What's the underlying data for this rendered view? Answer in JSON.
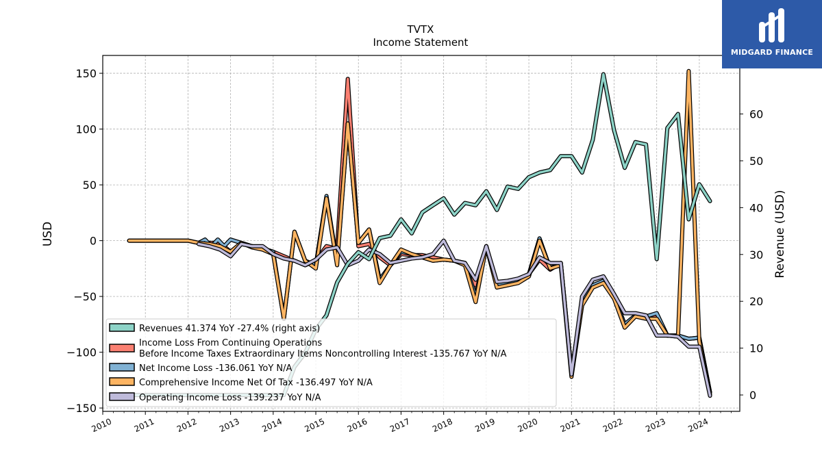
{
  "chart_data": {
    "type": "line",
    "title": "TVTX",
    "subtitle": "Income Statement",
    "ylabel": "USD",
    "y2label": "Revenue (USD)",
    "x_ticks": [
      "2010",
      "2011",
      "2012",
      "2013",
      "2014",
      "2015",
      "2016",
      "2017",
      "2018",
      "2019",
      "2020",
      "2021",
      "2022",
      "2023",
      "2024"
    ],
    "y_ticks": [
      150,
      100,
      50,
      0,
      -50,
      -100,
      -150
    ],
    "y_tick_labels": [
      "150",
      "100",
      "50",
      "0",
      "−50",
      "−100",
      "−150"
    ],
    "y2_ticks": [
      60,
      50,
      40,
      30,
      20,
      10,
      0
    ],
    "ylim": [
      -153,
      166
    ],
    "y2lim": [
      -3.5,
      72.5
    ],
    "xlim": [
      2010.0,
      2024.95
    ],
    "grid": true,
    "legend_position": "lower-left",
    "series": [
      {
        "name": "Revenues  41.374 YoY -27.4% (right axis)",
        "axis": "right",
        "color": "#8dd3c7",
        "x": [
          2010.62,
          2011.0,
          2011.5,
          2012.0,
          2012.5,
          2013.0,
          2013.5,
          2014.0,
          2014.12,
          2014.25,
          2014.5,
          2014.75,
          2015.0,
          2015.25,
          2015.5,
          2015.75,
          2016.0,
          2016.25,
          2016.5,
          2016.75,
          2017.0,
          2017.25,
          2017.5,
          2017.75,
          2018.0,
          2018.25,
          2018.5,
          2018.75,
          2019.0,
          2019.25,
          2019.5,
          2019.75,
          2020.0,
          2020.25,
          2020.5,
          2020.75,
          2021.0,
          2021.25,
          2021.5,
          2021.75,
          2022.0,
          2022.25,
          2022.5,
          2022.75,
          2023.0,
          2023.25,
          2023.5,
          2023.75,
          2024.0,
          2024.25
        ],
        "y": [
          0.0,
          0.0,
          0.0,
          0.0,
          0.0,
          0.0,
          0.0,
          0.0,
          0.0,
          0.0,
          6.0,
          9.0,
          14.0,
          17.0,
          24.0,
          28.0,
          30.5,
          29.0,
          33.5,
          34.0,
          37.5,
          34.5,
          39.0,
          40.5,
          42.0,
          38.5,
          41.0,
          40.5,
          43.5,
          39.5,
          44.5,
          44.0,
          46.5,
          47.5,
          48.0,
          51.0,
          51.0,
          47.5,
          54.5,
          68.5,
          56.5,
          48.5,
          54.0,
          53.5,
          29.0,
          57.0,
          60.0,
          37.5,
          45.0,
          41.4
        ]
      },
      {
        "name": "Income Loss From Continuing Operations\nBefore Income Taxes Extraordinary Items Noncontrolling Interest  -135.767 YoY N/A",
        "axis": "left",
        "color": "#fb8072",
        "x": [
          2010.62,
          2011.0,
          2011.5,
          2012.0,
          2012.25,
          2012.5,
          2012.75,
          2013.0,
          2013.25,
          2013.5,
          2013.75,
          2014.0,
          2014.25,
          2014.5,
          2014.75,
          2015.0,
          2015.25,
          2015.5,
          2015.75,
          2016.0,
          2016.25,
          2016.5,
          2016.75,
          2017.0,
          2017.25,
          2017.5,
          2017.75,
          2018.0,
          2018.25,
          2018.5,
          2018.75,
          2019.0,
          2019.25,
          2019.5,
          2019.75,
          2020.0,
          2020.25,
          2020.5,
          2020.75,
          2021.0,
          2021.25,
          2021.5,
          2021.75,
          2022.0,
          2022.25,
          2022.5,
          2022.75,
          2023.0,
          2023.25,
          2023.5,
          2023.75,
          2024.0,
          2024.25
        ],
        "y": [
          0,
          0,
          0,
          0,
          -2,
          -2,
          -2,
          -10,
          -2,
          -5,
          -7,
          -10,
          -14,
          -18,
          -22,
          -18,
          -5,
          -7,
          145,
          -5,
          -3,
          -15,
          -22,
          -12,
          -13,
          -13,
          -15,
          -17,
          -18,
          -20,
          -40,
          -5,
          -40,
          -38,
          -36,
          -30,
          -17,
          -26,
          -20,
          -118,
          -55,
          -40,
          -36,
          -50,
          -75,
          -67,
          -68,
          -68,
          -85,
          -85,
          -88,
          -87,
          -136
        ]
      },
      {
        "name": "Net Income Loss  -136.061 YoY N/A",
        "axis": "left",
        "color": "#80b1d3",
        "x": [
          2010.62,
          2011.0,
          2011.5,
          2012.0,
          2012.25,
          2012.4,
          2012.55,
          2012.7,
          2012.85,
          2013.0,
          2013.25,
          2013.5,
          2013.75,
          2014.0,
          2014.25,
          2014.5,
          2014.75,
          2015.0,
          2015.25,
          2015.5,
          2015.75,
          2016.0,
          2016.25,
          2016.5,
          2016.75,
          2017.0,
          2017.25,
          2017.5,
          2017.75,
          2018.0,
          2018.25,
          2018.5,
          2018.75,
          2019.0,
          2019.25,
          2019.5,
          2019.75,
          2020.0,
          2020.25,
          2020.5,
          2020.75,
          2021.0,
          2021.25,
          2021.5,
          2021.75,
          2022.0,
          2022.25,
          2022.5,
          2022.75,
          2023.0,
          2023.25,
          2023.5,
          2023.75,
          2024.0,
          2024.25
        ],
        "y": [
          0,
          0,
          0,
          0,
          -2,
          1,
          -5,
          1,
          -5,
          1,
          -2,
          -5,
          -7,
          -10,
          -70,
          8,
          -18,
          -22,
          40,
          -20,
          105,
          -2,
          10,
          -35,
          -22,
          -10,
          -12,
          -15,
          -18,
          -17,
          -18,
          -20,
          -50,
          -5,
          -40,
          -38,
          -36,
          -30,
          2,
          -25,
          -20,
          -118,
          -55,
          -40,
          -36,
          -50,
          -75,
          -67,
          -68,
          -65,
          -85,
          -85,
          -88,
          -87,
          -136
        ]
      },
      {
        "name": "Comprehensive Income Net Of Tax  -136.497 YoY N/A",
        "axis": "left",
        "color": "#fdb462",
        "x": [
          2010.62,
          2011.0,
          2011.5,
          2012.0,
          2012.25,
          2012.5,
          2012.75,
          2013.0,
          2013.25,
          2013.5,
          2013.75,
          2014.0,
          2014.25,
          2014.5,
          2014.75,
          2015.0,
          2015.25,
          2015.5,
          2015.75,
          2016.0,
          2016.25,
          2016.5,
          2016.75,
          2017.0,
          2017.25,
          2017.5,
          2017.75,
          2018.0,
          2018.25,
          2018.5,
          2018.75,
          2019.0,
          2019.25,
          2019.5,
          2019.75,
          2020.0,
          2020.25,
          2020.5,
          2020.75,
          2021.0,
          2021.25,
          2021.5,
          2021.75,
          2022.0,
          2022.25,
          2022.5,
          2022.75,
          2023.0,
          2023.25,
          2023.5,
          2023.75,
          2024.0,
          2024.25
        ],
        "y": [
          0,
          0,
          0,
          0,
          -2,
          -3,
          -5,
          -10,
          -2,
          -6,
          -8,
          -12,
          -70,
          8,
          -18,
          -25,
          38,
          -22,
          105,
          -2,
          10,
          -38,
          -22,
          -8,
          -12,
          -15,
          -18,
          -17,
          -18,
          -22,
          -55,
          -5,
          -42,
          -40,
          -38,
          -32,
          0,
          -25,
          -22,
          -122,
          -58,
          -42,
          -38,
          -52,
          -78,
          -68,
          -70,
          -70,
          -85,
          -86,
          152,
          -90,
          -138
        ]
      },
      {
        "name": "Operating Income Loss  -139.237 YoY N/A",
        "axis": "left",
        "color": "#bebada",
        "x": [
          2012.25,
          2012.5,
          2012.75,
          2013.0,
          2013.25,
          2013.5,
          2013.75,
          2014.0,
          2014.25,
          2014.5,
          2014.75,
          2015.0,
          2015.25,
          2015.5,
          2015.75,
          2016.0,
          2016.25,
          2016.5,
          2016.75,
          2017.0,
          2017.25,
          2017.5,
          2017.75,
          2018.0,
          2018.25,
          2018.5,
          2018.75,
          2019.0,
          2019.25,
          2019.5,
          2019.75,
          2020.0,
          2020.25,
          2020.5,
          2020.75,
          2021.0,
          2021.25,
          2021.5,
          2021.75,
          2022.0,
          2022.25,
          2022.5,
          2022.75,
          2023.0,
          2023.25,
          2023.5,
          2023.75,
          2024.0,
          2024.25
        ],
        "y": [
          -3,
          -5,
          -8,
          -14,
          -3,
          -5,
          -5,
          -12,
          -16,
          -18,
          -22,
          -17,
          -8,
          -6,
          -22,
          -18,
          -8,
          -12,
          -20,
          -18,
          -16,
          -15,
          -12,
          0,
          -18,
          -20,
          -35,
          -5,
          -37,
          -36,
          -34,
          -30,
          -15,
          -20,
          -20,
          -120,
          -50,
          -35,
          -32,
          -48,
          -65,
          -65,
          -67,
          -85,
          -85,
          -86,
          -95,
          -95,
          -139
        ]
      }
    ]
  },
  "logo": {
    "text": "MIDGARD FINANCE"
  }
}
